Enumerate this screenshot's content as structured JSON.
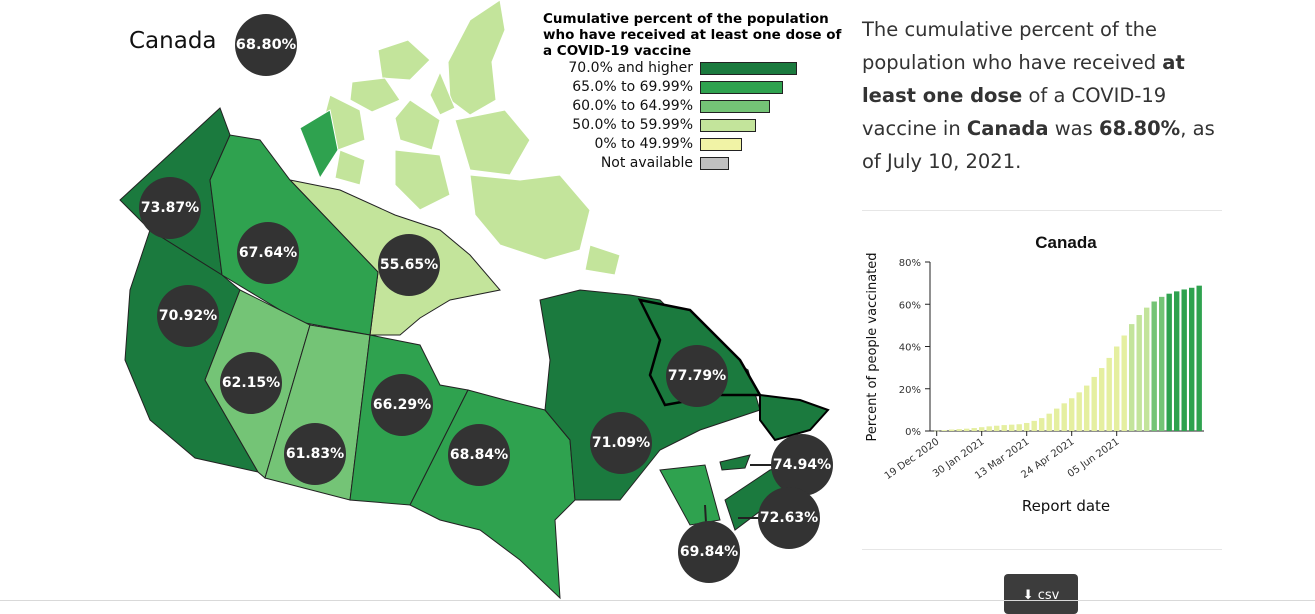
{
  "country_label": "Canada",
  "national_value": "68.80%",
  "legend": {
    "title": "Cumulative percent of the population who have received at least one dose of a COVID-19 vaccine",
    "items": [
      {
        "label": "70.0% and higher",
        "color": "#1b7a3e"
      },
      {
        "label": "65.0% to 69.99%",
        "color": "#2fa24f"
      },
      {
        "label": "60.0% to 64.99%",
        "color": "#74c476"
      },
      {
        "label": "50.0% to 59.99%",
        "color": "#c3e49b"
      },
      {
        "label": "0% to 49.99%",
        "color": "#f1f3a6"
      },
      {
        "label": "Not available",
        "color": "#c0c0c0"
      }
    ]
  },
  "regions": [
    {
      "name": "Yukon",
      "value": "73.87%"
    },
    {
      "name": "Northwest Territories",
      "value": "67.64%"
    },
    {
      "name": "Nunavut",
      "value": "55.65%"
    },
    {
      "name": "British Columbia",
      "value": "70.92%"
    },
    {
      "name": "Alberta",
      "value": "62.15%"
    },
    {
      "name": "Saskatchewan",
      "value": "61.83%"
    },
    {
      "name": "Manitoba",
      "value": "66.29%"
    },
    {
      "name": "Ontario",
      "value": "68.84%"
    },
    {
      "name": "Quebec",
      "value": "71.09%"
    },
    {
      "name": "Newfoundland and Labrador",
      "value": "77.79%"
    },
    {
      "name": "Prince Edward Island",
      "value": "74.94%"
    },
    {
      "name": "Nova Scotia",
      "value": "72.63%"
    },
    {
      "name": "New Brunswick",
      "value": "69.84%"
    }
  ],
  "info": {
    "part1": "The cumulative percent of the population who have received ",
    "bold1": "at least one dose",
    "part2": " of a COVID-19 vaccine in ",
    "bold2": "Canada",
    "part3": " was ",
    "bold3": "68.80%",
    "part4": ", as of July 10, 2021."
  },
  "csv_label": "csv",
  "colors": {
    "badge": "#333333"
  },
  "chart_data": {
    "type": "bar",
    "title": "Canada",
    "xlabel": "Report date",
    "ylabel": "Percent of people vaccinated",
    "ylim": [
      0,
      80
    ],
    "yticks": [
      "0%",
      "20%",
      "40%",
      "60%",
      "80%"
    ],
    "xticks": [
      "19 Dec 2020",
      "30 Jan 2021",
      "13 Mar 2021",
      "24 Apr 2021",
      "05 Jun 2021"
    ],
    "grid": false,
    "values": [
      0.1,
      0.4,
      0.7,
      0.9,
      1.1,
      1.4,
      1.8,
      2.2,
      2.5,
      2.8,
      3.0,
      3.2,
      3.8,
      4.8,
      6.1,
      8.2,
      10.6,
      13.1,
      15.5,
      18.3,
      21.5,
      25.6,
      29.8,
      34.6,
      40.0,
      45.2,
      50.6,
      54.9,
      58.4,
      61.3,
      63.5,
      65.0,
      66.1,
      67.0,
      67.8,
      68.8
    ],
    "colors": {
      "low": "#e5efa0",
      "mid": "#c3e49b",
      "mid2": "#74c476",
      "high": "#2fa24f",
      "top": "#1b7a3e"
    }
  }
}
